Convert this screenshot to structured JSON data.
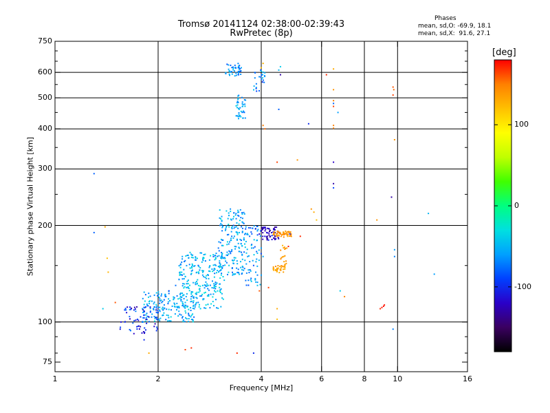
{
  "header": {
    "title_line1": "Tromsø 20141124 02:38:00-02:39:43",
    "title_line2": "RwPretec (8p)"
  },
  "phases_box": {
    "title": "Phases",
    "line_o": "mean, sd,O: -69.9, 18.1",
    "line_x": "mean, sd,X:  91.6, 27.1"
  },
  "colors": {
    "cmap": [
      "#000000",
      "#3a0060",
      "#2a00c8",
      "#0040ff",
      "#00a0ff",
      "#00e0e0",
      "#00ff80",
      "#40ff00",
      "#c0ff00",
      "#ffff00",
      "#ffc000",
      "#ff8000",
      "#ff0000"
    ]
  },
  "chart_data": {
    "type": "scatter",
    "xlabel": "Frequency [MHz]",
    "ylabel": "Stationary phase Virtual Height [km]",
    "xscale": "log2",
    "yscale": "log",
    "xlim": [
      1,
      16
    ],
    "ylim": [
      70,
      750
    ],
    "xticks": [
      {
        "v": 1,
        "label": "1"
      },
      {
        "v": 2,
        "label": "2"
      },
      {
        "v": 4,
        "label": "4"
      },
      {
        "v": 6,
        "label": "6"
      },
      {
        "v": 8,
        "label": "8"
      },
      {
        "v": 10,
        "label": "10"
      },
      {
        "v": 16,
        "label": "16"
      }
    ],
    "yticks": [
      {
        "v": 75,
        "label": "75"
      },
      {
        "v": 100,
        "label": "100"
      },
      {
        "v": 200,
        "label": "200"
      },
      {
        "v": 300,
        "label": "300"
      },
      {
        "v": 400,
        "label": "400"
      },
      {
        "v": 500,
        "label": "500"
      },
      {
        "v": 600,
        "label": "600"
      },
      {
        "v": 750,
        "label": "750"
      }
    ],
    "grid_x": [
      2,
      4,
      6,
      8,
      10
    ],
    "grid_y": [
      100,
      200,
      300,
      400,
      500,
      600
    ],
    "colorbar": {
      "label": "[deg]",
      "range": [
        -180,
        180
      ],
      "ticks": [
        {
          "v": 100,
          "label": "100"
        },
        {
          "v": 0,
          "label": "0"
        },
        {
          "v": -100,
          "label": "-100"
        }
      ]
    },
    "points": [
      {
        "f": 1.55,
        "h": 95,
        "p": -110
      },
      {
        "f": 1.6,
        "h": 100,
        "p": -95
      },
      {
        "f": 1.65,
        "h": 104,
        "p": -80
      },
      {
        "f": 1.7,
        "h": 92,
        "p": -120
      },
      {
        "f": 1.72,
        "h": 108,
        "p": -70
      },
      {
        "f": 1.75,
        "h": 97,
        "p": -100
      },
      {
        "f": 1.8,
        "h": 110,
        "p": -60
      },
      {
        "f": 1.82,
        "h": 103,
        "p": -85
      },
      {
        "f": 1.85,
        "h": 99,
        "p": -105
      },
      {
        "f": 1.9,
        "h": 108,
        "p": -75
      },
      {
        "f": 1.95,
        "h": 104,
        "p": -65
      },
      {
        "f": 1.98,
        "h": 112,
        "p": -55
      },
      {
        "f": 2.0,
        "h": 107,
        "p": -90
      },
      {
        "f": 2.02,
        "h": 101,
        "p": -60
      },
      {
        "f": 2.05,
        "h": 115,
        "p": -70
      },
      {
        "f": 2.08,
        "h": 110,
        "p": -50
      },
      {
        "f": 2.1,
        "h": 120,
        "p": -80
      },
      {
        "f": 2.12,
        "h": 105,
        "p": -45
      },
      {
        "f": 2.15,
        "h": 125,
        "p": -95
      },
      {
        "f": 2.2,
        "h": 112,
        "p": -60
      },
      {
        "f": 2.22,
        "h": 118,
        "p": -40
      },
      {
        "f": 2.25,
        "h": 130,
        "p": -75
      },
      {
        "f": 2.3,
        "h": 108,
        "p": -55
      },
      {
        "f": 2.32,
        "h": 122,
        "p": -65
      },
      {
        "f": 2.35,
        "h": 140,
        "p": -85
      },
      {
        "f": 2.4,
        "h": 115,
        "p": -50
      },
      {
        "f": 2.42,
        "h": 128,
        "p": -60
      },
      {
        "f": 2.45,
        "h": 135,
        "p": -45
      },
      {
        "f": 2.5,
        "h": 120,
        "p": -70
      },
      {
        "f": 2.52,
        "h": 145,
        "p": -55
      },
      {
        "f": 2.55,
        "h": 110,
        "p": -65
      },
      {
        "f": 2.6,
        "h": 132,
        "p": -40
      },
      {
        "f": 2.62,
        "h": 150,
        "p": -80
      },
      {
        "f": 2.65,
        "h": 125,
        "p": -35
      },
      {
        "f": 2.7,
        "h": 140,
        "p": -60
      },
      {
        "f": 2.72,
        "h": 118,
        "p": -50
      },
      {
        "f": 2.75,
        "h": 155,
        "p": -70
      },
      {
        "f": 2.8,
        "h": 130,
        "p": -45
      },
      {
        "f": 2.82,
        "h": 148,
        "p": -55
      },
      {
        "f": 2.85,
        "h": 122,
        "p": -65
      },
      {
        "f": 2.9,
        "h": 160,
        "p": -85
      },
      {
        "f": 2.92,
        "h": 138,
        "p": -40
      },
      {
        "f": 2.95,
        "h": 150,
        "p": -50
      },
      {
        "f": 3.0,
        "h": 170,
        "p": -75
      },
      {
        "f": 3.02,
        "h": 128,
        "p": -35
      },
      {
        "f": 3.05,
        "h": 145,
        "p": -60
      },
      {
        "f": 3.08,
        "h": 180,
        "p": -80
      },
      {
        "f": 3.1,
        "h": 158,
        "p": -55
      },
      {
        "f": 3.12,
        "h": 135,
        "p": -45
      },
      {
        "f": 3.15,
        "h": 195,
        "p": -70
      },
      {
        "f": 3.18,
        "h": 165,
        "p": -60
      },
      {
        "f": 3.2,
        "h": 210,
        "p": -50
      },
      {
        "f": 3.22,
        "h": 150,
        "p": -40
      },
      {
        "f": 3.25,
        "h": 225,
        "p": -65
      },
      {
        "f": 3.28,
        "h": 185,
        "p": -75
      },
      {
        "f": 3.3,
        "h": 140,
        "p": -55
      },
      {
        "f": 3.32,
        "h": 200,
        "p": -85
      },
      {
        "f": 3.35,
        "h": 172,
        "p": -45
      },
      {
        "f": 3.4,
        "h": 155,
        "p": -60
      },
      {
        "f": 3.42,
        "h": 215,
        "p": -70
      },
      {
        "f": 3.45,
        "h": 190,
        "p": -50
      },
      {
        "f": 3.5,
        "h": 165,
        "p": -80
      },
      {
        "f": 3.52,
        "h": 205,
        "p": -55
      },
      {
        "f": 3.55,
        "h": 145,
        "p": -65
      },
      {
        "f": 3.58,
        "h": 175,
        "p": -40
      },
      {
        "f": 3.6,
        "h": 195,
        "p": -90
      },
      {
        "f": 3.65,
        "h": 160,
        "p": -60
      },
      {
        "f": 3.7,
        "h": 185,
        "p": -75
      },
      {
        "f": 3.75,
        "h": 170,
        "p": -50
      },
      {
        "f": 3.8,
        "h": 150,
        "p": -85
      },
      {
        "f": 3.85,
        "h": 195,
        "p": -110
      },
      {
        "f": 3.9,
        "h": 140,
        "p": -70
      },
      {
        "f": 3.95,
        "h": 188,
        "p": -120
      },
      {
        "f": 4.0,
        "h": 192,
        "p": -130
      },
      {
        "f": 4.05,
        "h": 196,
        "p": -125
      },
      {
        "f": 4.1,
        "h": 185,
        "p": -110
      },
      {
        "f": 4.15,
        "h": 190,
        "p": -115
      },
      {
        "f": 4.2,
        "h": 180,
        "p": -100
      },
      {
        "f": 4.3,
        "h": 186,
        "p": -95
      },
      {
        "f": 4.0,
        "h": 170,
        "p": -60
      },
      {
        "f": 4.05,
        "h": 160,
        "p": -55
      },
      {
        "f": 3.9,
        "h": 130,
        "p": -45
      },
      {
        "f": 3.95,
        "h": 125,
        "p": 160
      },
      {
        "f": 4.0,
        "h": 140,
        "p": -60
      },
      {
        "f": 4.35,
        "h": 188,
        "p": 140
      },
      {
        "f": 4.45,
        "h": 189,
        "p": 145
      },
      {
        "f": 4.55,
        "h": 188,
        "p": 150
      },
      {
        "f": 4.65,
        "h": 187,
        "p": 145
      },
      {
        "f": 4.75,
        "h": 188,
        "p": 140
      },
      {
        "f": 4.85,
        "h": 188,
        "p": -110
      },
      {
        "f": 4.35,
        "h": 145,
        "p": 130
      },
      {
        "f": 4.45,
        "h": 146,
        "p": 135
      },
      {
        "f": 4.55,
        "h": 145,
        "p": 140
      },
      {
        "f": 4.65,
        "h": 160,
        "p": 130
      },
      {
        "f": 4.75,
        "h": 170,
        "p": 135
      },
      {
        "f": 4.8,
        "h": 172,
        "p": 175
      },
      {
        "f": 5.2,
        "h": 185,
        "p": 170
      },
      {
        "f": 4.2,
        "h": 128,
        "p": 165
      },
      {
        "f": 1.4,
        "h": 198,
        "p": 130
      },
      {
        "f": 1.42,
        "h": 158,
        "p": 120
      },
      {
        "f": 1.43,
        "h": 143,
        "p": 125
      },
      {
        "f": 1.38,
        "h": 110,
        "p": -40
      },
      {
        "f": 1.3,
        "h": 190,
        "p": -80
      },
      {
        "f": 1.3,
        "h": 290,
        "p": -80
      },
      {
        "f": 1.5,
        "h": 115,
        "p": 160
      },
      {
        "f": 1.88,
        "h": 80,
        "p": 130
      },
      {
        "f": 1.82,
        "h": 88,
        "p": -100
      },
      {
        "f": 2.4,
        "h": 82,
        "p": 165
      },
      {
        "f": 2.5,
        "h": 83,
        "p": 170
      },
      {
        "f": 3.4,
        "h": 80,
        "p": 170
      },
      {
        "f": 3.8,
        "h": 80,
        "p": -100
      },
      {
        "f": 4.45,
        "h": 102,
        "p": 120
      },
      {
        "f": 4.45,
        "h": 110,
        "p": 130
      },
      {
        "f": 5.6,
        "h": 225,
        "p": 140
      },
      {
        "f": 5.7,
        "h": 220,
        "p": 130
      },
      {
        "f": 5.8,
        "h": 208,
        "p": 120
      },
      {
        "f": 6.5,
        "h": 315,
        "p": -120
      },
      {
        "f": 6.5,
        "h": 270,
        "p": -130
      },
      {
        "f": 6.5,
        "h": 262,
        "p": -90
      },
      {
        "f": 6.5,
        "h": 615,
        "p": 130
      },
      {
        "f": 6.5,
        "h": 530,
        "p": 140
      },
      {
        "f": 6.5,
        "h": 490,
        "p": 150
      },
      {
        "f": 6.5,
        "h": 470,
        "p": 165
      },
      {
        "f": 6.5,
        "h": 410,
        "p": 150
      },
      {
        "f": 6.5,
        "h": 402,
        "p": 150
      },
      {
        "f": 6.2,
        "h": 590,
        "p": 170
      },
      {
        "f": 6.5,
        "h": 480,
        "p": -80
      },
      {
        "f": 6.7,
        "h": 450,
        "p": -60
      },
      {
        "f": 5.5,
        "h": 415,
        "p": -100
      },
      {
        "f": 6.8,
        "h": 125,
        "p": -40
      },
      {
        "f": 7.0,
        "h": 120,
        "p": 150
      },
      {
        "f": 8.9,
        "h": 110,
        "p": 170
      },
      {
        "f": 9.0,
        "h": 111,
        "p": 175
      },
      {
        "f": 9.1,
        "h": 112,
        "p": 178
      },
      {
        "f": 9.15,
        "h": 113,
        "p": 175
      },
      {
        "f": 8.7,
        "h": 208,
        "p": 140
      },
      {
        "f": 9.7,
        "h": 540,
        "p": 160
      },
      {
        "f": 9.75,
        "h": 530,
        "p": 155
      },
      {
        "f": 9.7,
        "h": 510,
        "p": 165
      },
      {
        "f": 9.8,
        "h": 370,
        "p": 140
      },
      {
        "f": 9.6,
        "h": 245,
        "p": -130
      },
      {
        "f": 9.8,
        "h": 168,
        "p": -60
      },
      {
        "f": 9.8,
        "h": 160,
        "p": -70
      },
      {
        "f": 9.7,
        "h": 95,
        "p": -70
      },
      {
        "f": 12.3,
        "h": 218,
        "p": -50
      },
      {
        "f": 12.8,
        "h": 141,
        "p": -60
      },
      {
        "f": 4.05,
        "h": 410,
        "p": 150
      },
      {
        "f": 4.1,
        "h": 400,
        "p": 155
      },
      {
        "f": 4.45,
        "h": 315,
        "p": 165
      },
      {
        "f": 4.5,
        "h": 460,
        "p": -80
      },
      {
        "f": 4.55,
        "h": 590,
        "p": -130
      },
      {
        "f": 4.5,
        "h": 610,
        "p": -50
      },
      {
        "f": 4.55,
        "h": 625,
        "p": -40
      },
      {
        "f": 4.0,
        "h": 620,
        "p": 120
      },
      {
        "f": 4.05,
        "h": 640,
        "p": 125
      },
      {
        "f": 4.0,
        "h": 605,
        "p": -40
      },
      {
        "f": 5.1,
        "h": 320,
        "p": 140
      }
    ],
    "clusters": [
      {
        "f": [
          3.15,
          3.5
        ],
        "h": [
          580,
          640
        ],
        "p": [
          -90,
          -40
        ],
        "n": 45
      },
      {
        "f": [
          3.35,
          3.6
        ],
        "h": [
          430,
          510
        ],
        "p": [
          -80,
          -40
        ],
        "n": 40
      },
      {
        "f": [
          3.8,
          4.1
        ],
        "h": [
          520,
          620
        ],
        "p": [
          -100,
          -40
        ],
        "n": 25
      },
      {
        "f": [
          1.8,
          2.6
        ],
        "h": [
          100,
          125
        ],
        "p": [
          -80,
          -30
        ],
        "n": 170
      },
      {
        "f": [
          2.3,
          3.1
        ],
        "h": [
          110,
          165
        ],
        "p": [
          -75,
          -25
        ],
        "n": 230
      },
      {
        "f": [
          3.0,
          3.6
        ],
        "h": [
          140,
          225
        ],
        "p": [
          -80,
          -30
        ],
        "n": 170
      },
      {
        "f": [
          3.6,
          4.0
        ],
        "h": [
          130,
          200
        ],
        "p": [
          -90,
          -40
        ],
        "n": 60
      },
      {
        "f": [
          4.0,
          4.5
        ],
        "h": [
          180,
          198
        ],
        "p": [
          -140,
          -110
        ],
        "n": 55
      },
      {
        "f": [
          4.3,
          4.9
        ],
        "h": [
          184,
          192
        ],
        "p": [
          130,
          150
        ],
        "n": 50
      },
      {
        "f": [
          4.3,
          4.7
        ],
        "h": [
          142,
          150
        ],
        "p": [
          125,
          145
        ],
        "n": 30
      },
      {
        "f": [
          4.55,
          4.75
        ],
        "h": [
          150,
          175
        ],
        "p": [
          125,
          145
        ],
        "n": 15
      },
      {
        "f": [
          1.55,
          2.0
        ],
        "h": [
          92,
          112
        ],
        "p": [
          -130,
          -70
        ],
        "n": 60
      }
    ]
  }
}
